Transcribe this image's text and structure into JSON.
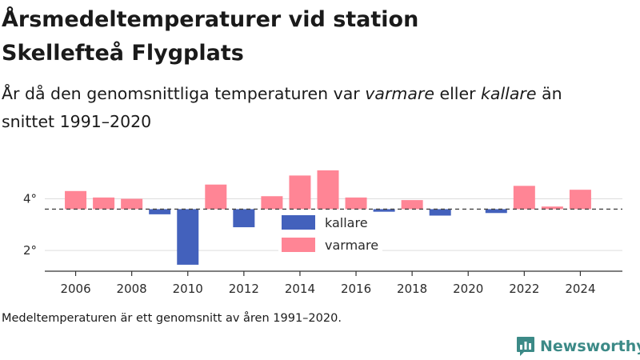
{
  "header": {
    "title_line1": "Årsmedeltemperaturer vid station",
    "title_line2": "Skellefteå Flygplats",
    "subtitle_part1": "År då den genomsnittliga temperaturen var ",
    "subtitle_em1": "varmare",
    "subtitle_part2": " eller ",
    "subtitle_em2": "kallare",
    "subtitle_part3": " än",
    "subtitle_line2": "snittet 1991–2020"
  },
  "footnote": "Medeltemperaturen är ett genomsnitt av åren 1991–2020.",
  "brand": {
    "name": "Newsworthy",
    "icon": "bar-chart-logo-icon",
    "color": "#3c8a87"
  },
  "colors": {
    "warmer": "#ff8595",
    "colder": "#4361bc",
    "baseline": "#444444"
  },
  "chart_data": {
    "type": "bar",
    "title": "Årsmedeltemperaturer vid station Skellefteå Flygplats",
    "baseline": 3.6,
    "baseline_style": "dashed",
    "years": [
      2006,
      2007,
      2008,
      2009,
      2010,
      2011,
      2012,
      2013,
      2014,
      2015,
      2016,
      2017,
      2018,
      2019,
      2020,
      2021,
      2022,
      2023,
      2024
    ],
    "values": [
      4.3,
      4.05,
      4.0,
      3.4,
      1.45,
      4.55,
      2.9,
      4.1,
      4.9,
      5.1,
      4.05,
      3.5,
      3.95,
      3.35,
      3.6,
      3.45,
      4.5,
      3.7,
      4.35
    ],
    "y_ticks": [
      {
        "value": 2,
        "label": "2°"
      },
      {
        "value": 4,
        "label": "4°"
      }
    ],
    "x_ticks": [
      {
        "value": 2006,
        "label": "2006"
      },
      {
        "value": 2008,
        "label": "2008"
      },
      {
        "value": 2010,
        "label": "2010"
      },
      {
        "value": 2012,
        "label": "2012"
      },
      {
        "value": 2014,
        "label": "2014"
      },
      {
        "value": 2016,
        "label": "2016"
      },
      {
        "value": 2018,
        "label": "2018"
      },
      {
        "value": 2020,
        "label": "2020"
      },
      {
        "value": 2022,
        "label": "2022"
      },
      {
        "value": 2024,
        "label": "2024"
      }
    ],
    "ylim": [
      1.2,
      5.5
    ],
    "xlim": [
      2004.9,
      2025.5
    ],
    "grid": true,
    "legend": {
      "placement": "center",
      "items": [
        {
          "label": "kallare",
          "color": "#4361bc"
        },
        {
          "label": "varmare",
          "color": "#ff8595"
        }
      ]
    }
  }
}
